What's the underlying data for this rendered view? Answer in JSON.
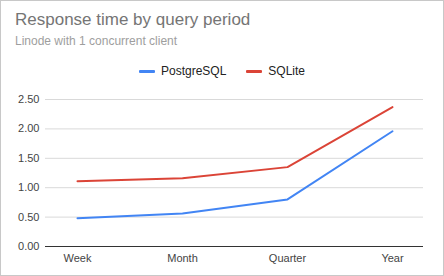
{
  "chart_data": {
    "type": "line",
    "title": "Response time by query period",
    "subtitle": "Linode with 1 concurrent client",
    "categories": [
      "Week",
      "Month",
      "Quarter",
      "Year"
    ],
    "series": [
      {
        "name": "PostgreSQL",
        "color": "#4285f4",
        "values": [
          0.48,
          0.56,
          0.8,
          1.96
        ]
      },
      {
        "name": "SQLite",
        "color": "#db4437",
        "values": [
          1.11,
          1.16,
          1.35,
          2.37
        ]
      }
    ],
    "ylim": [
      0,
      2.5
    ],
    "yticks": [
      {
        "value": 0,
        "label": "0.00"
      },
      {
        "value": 0.5,
        "label": "0.50"
      },
      {
        "value": 1,
        "label": "1.00"
      },
      {
        "value": 1.5,
        "label": "1.50"
      },
      {
        "value": 2,
        "label": "2.00"
      },
      {
        "value": 2.5,
        "label": "2.50"
      }
    ],
    "grid": true,
    "legend": "top"
  }
}
